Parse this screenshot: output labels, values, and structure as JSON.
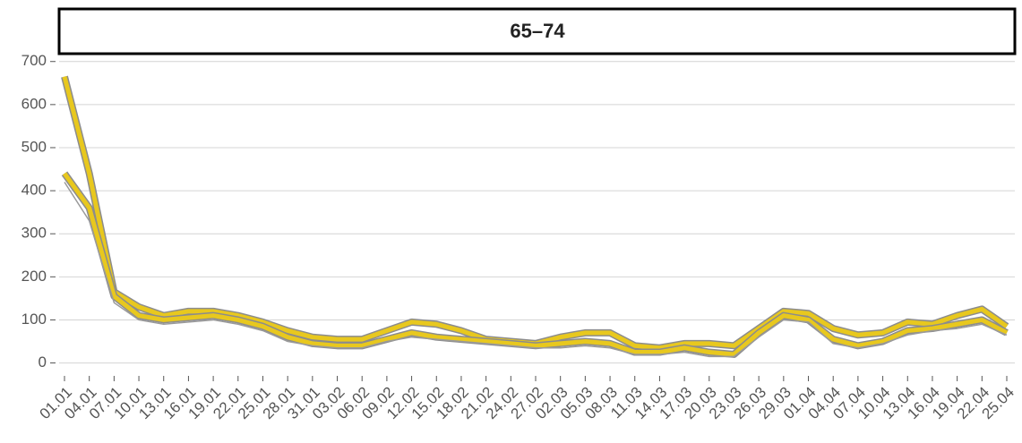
{
  "chart_data": {
    "type": "line",
    "facet": "65–74",
    "categories": [
      "01.01",
      "04.01",
      "07.01",
      "10.01",
      "13.01",
      "16.01",
      "19.01",
      "22.01",
      "25.01",
      "28.01",
      "31.01",
      "03.02",
      "06.02",
      "09.02",
      "12.02",
      "15.02",
      "18.02",
      "21.02",
      "24.02",
      "27.02",
      "02.03",
      "05.03",
      "08.03",
      "11.03",
      "14.03",
      "17.03",
      "20.03",
      "23.03",
      "26.03",
      "29.03",
      "01.04",
      "04.04",
      "07.04",
      "10.04",
      "13.04",
      "16.04",
      "19.04",
      "22.04",
      "25.04"
    ],
    "series": [
      {
        "color": "#e8c81e",
        "values": [
          665,
          440,
          165,
          130,
          110,
          120,
          120,
          110,
          95,
          75,
          60,
          55,
          55,
          75,
          95,
          90,
          75,
          55,
          50,
          45,
          60,
          70,
          70,
          40,
          35,
          45,
          45,
          40,
          80,
          120,
          115,
          80,
          65,
          70,
          95,
          90,
          110,
          125,
          85
        ]
      },
      {
        "color": "#e8c81e",
        "values": [
          440,
          360,
          155,
          110,
          100,
          105,
          110,
          100,
          85,
          60,
          45,
          40,
          40,
          55,
          70,
          60,
          55,
          50,
          45,
          40,
          45,
          50,
          45,
          25,
          25,
          35,
          25,
          20,
          70,
          110,
          100,
          55,
          40,
          50,
          75,
          80,
          90,
          100,
          70
        ]
      },
      {
        "color": "#9a9a9a",
        "values": [
          420,
          330,
          140,
          100,
          90,
          95,
          100,
          90,
          75,
          50,
          40,
          35,
          35,
          50,
          60,
          55,
          50,
          45,
          40,
          35,
          35,
          40,
          35,
          20,
          20,
          25,
          15,
          15,
          60,
          100,
          95,
          45,
          35,
          45,
          65,
          75,
          80,
          90,
          65
        ]
      }
    ],
    "ylim": [
      -30,
      714
    ],
    "yticks": [
      0,
      100,
      200,
      300,
      400,
      500,
      600,
      700
    ],
    "grid": true
  }
}
